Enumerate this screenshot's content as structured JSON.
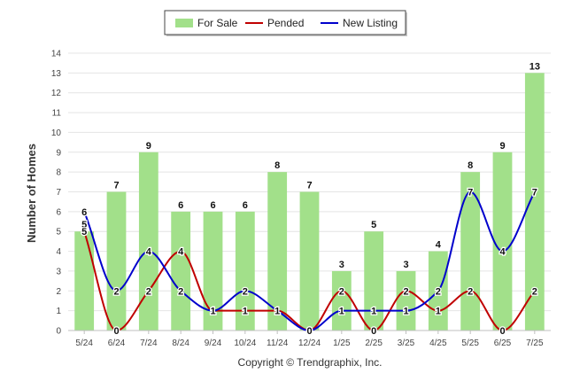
{
  "chart_data": {
    "type": "bar",
    "categories": [
      "5/24",
      "6/24",
      "7/24",
      "8/24",
      "9/24",
      "10/24",
      "11/24",
      "12/24",
      "1/25",
      "2/25",
      "3/25",
      "4/25",
      "5/25",
      "6/25",
      "7/25"
    ],
    "series": [
      {
        "name": "For Sale",
        "type": "bar",
        "color": "#a2e08a",
        "values": [
          5,
          7,
          9,
          6,
          6,
          6,
          8,
          7,
          3,
          5,
          3,
          4,
          8,
          9,
          13
        ]
      },
      {
        "name": "Pended",
        "type": "line",
        "color": "#c00000",
        "values": [
          5,
          0,
          2,
          4,
          1,
          1,
          1,
          0,
          2,
          0,
          2,
          1,
          2,
          0,
          2
        ]
      },
      {
        "name": "New Listing",
        "type": "line",
        "color": "#0000cc",
        "values": [
          6,
          2,
          4,
          2,
          1,
          2,
          1,
          0,
          1,
          1,
          1,
          2,
          7,
          4,
          7
        ]
      }
    ],
    "ylabel": "Number of Homes",
    "xlabel": "",
    "ylim": [
      0,
      14
    ],
    "yticks": [
      0,
      1,
      2,
      3,
      4,
      5,
      6,
      7,
      8,
      9,
      10,
      11,
      12,
      13,
      14
    ],
    "grid": true,
    "legend_position": "top-center",
    "footer": "Copyright © Trendgraphix, Inc."
  }
}
